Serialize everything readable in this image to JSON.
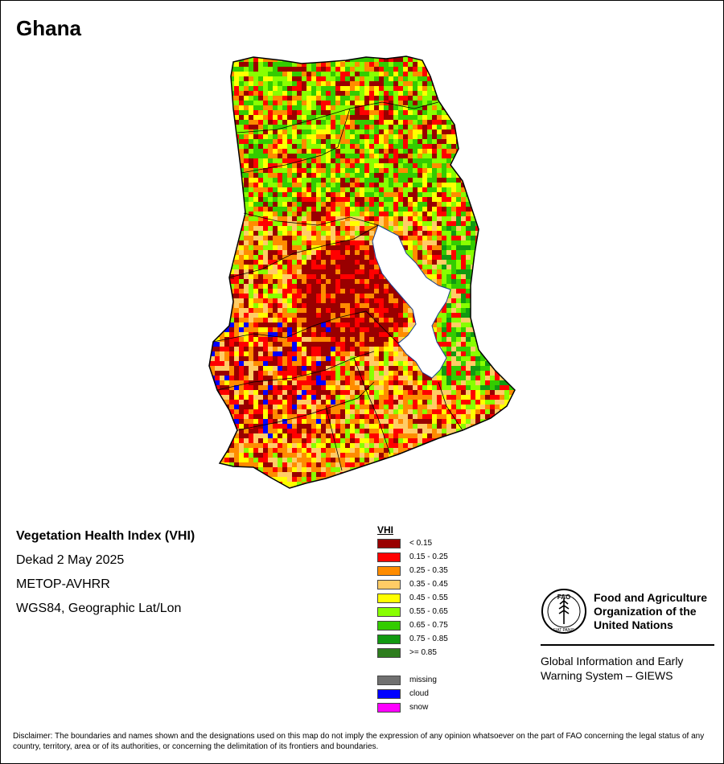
{
  "country": "Ghana",
  "product": {
    "name": "Vegetation Health Index (VHI)",
    "period": "Dekad 2 May 2025",
    "sensor": "METOP-AVHRR",
    "projection": "WGS84, Geographic Lat/Lon"
  },
  "legend": {
    "title": "VHI",
    "classes": [
      {
        "label": "< 0.15",
        "color": "#990000"
      },
      {
        "label": "0.15 - 0.25",
        "color": "#ff0000"
      },
      {
        "label": "0.25 - 0.35",
        "color": "#ff8c00"
      },
      {
        "label": "0.35 - 0.45",
        "color": "#ffcc66"
      },
      {
        "label": "0.45 - 0.55",
        "color": "#ffff00"
      },
      {
        "label": "0.55 - 0.65",
        "color": "#88ff00"
      },
      {
        "label": "0.65 - 0.75",
        "color": "#33cc00"
      },
      {
        "label": "0.75 - 0.85",
        "color": "#119911"
      },
      {
        "label": ">= 0.85",
        "color": "#2e7d1e"
      }
    ],
    "special": [
      {
        "label": "missing",
        "color": "#707070"
      },
      {
        "label": "cloud",
        "color": "#0000ff"
      },
      {
        "label": "snow",
        "color": "#ff00ff"
      }
    ]
  },
  "org": {
    "name_line1": "Food and Agriculture",
    "name_line2": "Organization of the",
    "name_line3": "United Nations",
    "logo_text": "FAO",
    "logo_motto": "FIAT PANIS",
    "system_line1": "Global Information and Early",
    "system_line2": "Warning System – GIEWS"
  },
  "disclaimer": "Disclaimer: The boundaries and names shown and the designations used on this map do not imply the expression of any opinion whatsoever on the part of FAO concerning the legal status of any country, territory, area or of its authorities, or concerning the delimitation of its frontiers and boundaries.",
  "colors": {
    "lake": "#ffffff",
    "border": "#000000",
    "lake_edge": "#1a3f8f"
  }
}
